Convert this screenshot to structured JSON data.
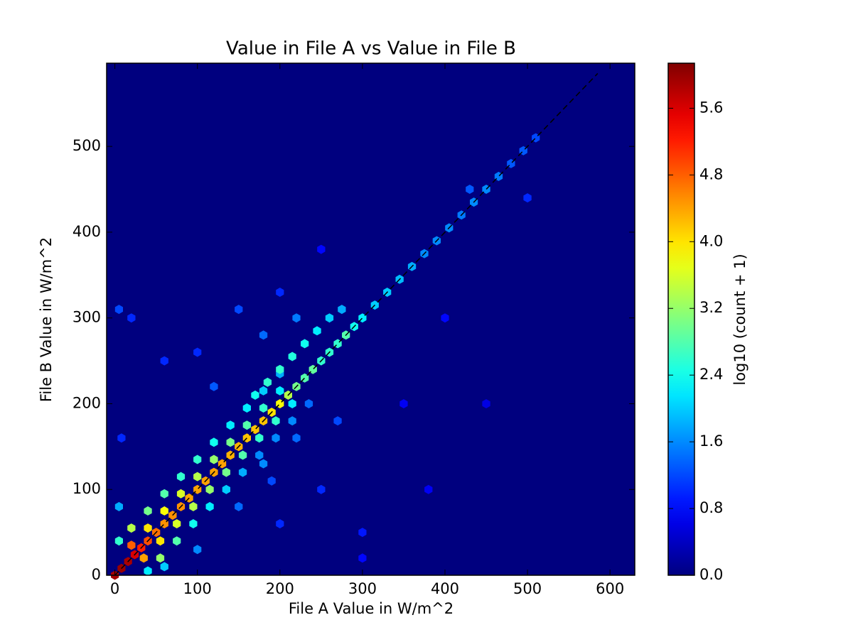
{
  "chart_data": {
    "type": "hexbin",
    "title": "Value in File A vs Value in File B",
    "x_label": "File A Value in W/m^2",
    "y_label": "File B Value in W/m^2",
    "colorbar_label": "log10 (count + 1)",
    "colormap": "jet",
    "xlim": [
      -10,
      630
    ],
    "xticks": [
      0,
      100,
      200,
      300,
      400,
      500,
      600
    ],
    "ylim": [
      0,
      597
    ],
    "yticks": [
      0,
      100,
      200,
      300,
      400,
      500
    ],
    "clim": [
      0,
      6.14
    ],
    "cticks": [
      {
        "value": 0,
        "label": "0.0"
      },
      0.8,
      1.6,
      2.4,
      3.2,
      {
        "value": 4,
        "label": "4.0"
      },
      4.8,
      5.6
    ],
    "x": [
      0,
      8,
      16,
      24,
      32,
      40,
      50,
      60,
      70,
      80,
      90,
      100,
      110,
      120,
      130,
      140,
      150,
      160,
      170,
      180,
      190,
      200,
      210,
      220,
      230,
      240,
      250,
      260,
      270,
      280,
      290,
      300,
      315,
      330,
      345,
      360,
      375,
      390,
      405,
      420,
      435,
      450,
      465,
      480,
      495,
      510,
      20,
      35,
      20,
      55,
      40,
      55,
      40,
      75,
      60,
      75,
      60,
      95,
      80,
      95,
      80,
      115,
      100,
      115,
      100,
      135,
      120,
      135,
      120,
      155,
      140,
      155,
      140,
      175,
      160,
      175,
      160,
      195,
      180,
      195,
      180,
      215,
      200,
      215,
      200,
      235,
      170,
      185,
      200,
      215,
      230,
      245,
      260,
      275,
      100,
      150,
      200,
      250,
      350,
      300,
      380,
      120,
      180,
      220,
      60,
      20,
      5,
      400,
      450,
      500,
      430,
      300,
      250,
      200,
      100,
      60,
      40,
      5,
      5,
      8,
      180,
      220,
      270,
      190,
      150
    ],
    "y": [
      0,
      8,
      16,
      24,
      32,
      40,
      50,
      60,
      70,
      80,
      90,
      100,
      110,
      120,
      130,
      140,
      150,
      160,
      170,
      180,
      190,
      200,
      210,
      220,
      230,
      240,
      250,
      260,
      270,
      280,
      290,
      300,
      315,
      330,
      345,
      360,
      375,
      390,
      405,
      420,
      435,
      450,
      465,
      480,
      495,
      510,
      35,
      20,
      55,
      20,
      55,
      40,
      75,
      40,
      75,
      60,
      95,
      60,
      95,
      80,
      115,
      80,
      115,
      100,
      135,
      100,
      135,
      120,
      155,
      120,
      155,
      140,
      175,
      140,
      175,
      160,
      195,
      160,
      195,
      180,
      215,
      180,
      215,
      200,
      235,
      200,
      210,
      225,
      240,
      255,
      270,
      285,
      300,
      310,
      260,
      310,
      330,
      380,
      200,
      50,
      100,
      220,
      280,
      300,
      250,
      300,
      310,
      300,
      200,
      440,
      450,
      20,
      100,
      60,
      30,
      10,
      5,
      40,
      80,
      160,
      130,
      160,
      180,
      110,
      80
    ],
    "values": [
      5.9,
      6.0,
      5.9,
      5.6,
      5.2,
      4.9,
      4.7,
      4.5,
      4.5,
      4.5,
      4.4,
      4.4,
      4.4,
      4.4,
      4.4,
      4.3,
      4.3,
      4.2,
      4.2,
      4.2,
      4.0,
      3.8,
      3.4,
      3.0,
      2.8,
      2.9,
      2.6,
      2.6,
      2.6,
      2.8,
      2.4,
      2.2,
      2.0,
      2.0,
      1.9,
      1.8,
      1.6,
      1.6,
      1.6,
      1.5,
      1.6,
      1.6,
      1.5,
      1.3,
      1.3,
      1.2,
      4.8,
      4.4,
      3.4,
      3.2,
      4.0,
      4.0,
      3.0,
      2.8,
      3.8,
      3.6,
      2.8,
      2.4,
      3.6,
      3.4,
      2.6,
      2.2,
      3.4,
      3.2,
      2.6,
      2.0,
      3.2,
      3.0,
      2.4,
      1.8,
      3.0,
      2.8,
      2.2,
      1.6,
      2.8,
      2.6,
      2.2,
      1.6,
      2.6,
      2.6,
      2.0,
      1.6,
      2.2,
      2.2,
      1.8,
      1.4,
      2.4,
      2.6,
      2.6,
      2.5,
      2.4,
      2.2,
      2.0,
      1.8,
      1.0,
      1.2,
      1.0,
      0.8,
      0.7,
      0.9,
      0.7,
      1.3,
      1.4,
      1.5,
      1.0,
      1.0,
      1.2,
      0.8,
      0.6,
      1.0,
      1.3,
      0.8,
      1.0,
      1.0,
      1.6,
      2.0,
      2.2,
      2.6,
      1.8,
      1.0,
      1.6,
      1.4,
      1.2,
      1.2,
      1.4
    ]
  }
}
